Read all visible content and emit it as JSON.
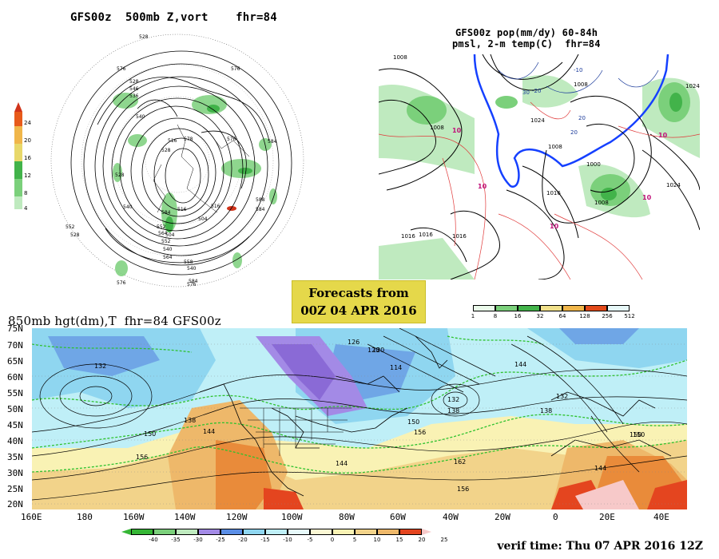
{
  "top_left": {
    "title": "GFS00z  500mb Z,vort    fhr=84",
    "legend": {
      "values": [
        "4",
        "8",
        "12",
        "16",
        "20",
        "24"
      ]
    },
    "contour_labels": [
      "528",
      "576",
      "576",
      "584",
      "528",
      "546",
      "536",
      "540",
      "528",
      "516",
      "528",
      "540",
      "516",
      "584",
      "552",
      "528",
      "552",
      "564",
      "558",
      "540",
      "576",
      "584",
      "588",
      "576",
      "578",
      "516",
      "504",
      "552",
      "540",
      "564",
      "504",
      "584",
      "576"
    ]
  },
  "top_right": {
    "title_line1": "GFS00z pop(mm/dy) 60-84h",
    "title_line2": "pmsl, 2-m temp(C)  fhr=84",
    "legend": {
      "values": [
        "1",
        "8",
        "16",
        "32",
        "64",
        "128",
        "256",
        "512"
      ]
    },
    "contour_labels": [
      "1008",
      "1008",
      "1024",
      "1008",
      "1016",
      "1016",
      "1016",
      "1024",
      "1008",
      "1000",
      "1008",
      "1016",
      "1024"
    ],
    "temp_labels": [
      "10",
      "10",
      "10",
      "10",
      "10",
      "-10",
      "-20",
      "20",
      "30",
      "20"
    ]
  },
  "forecast_box": {
    "line1": "Forecasts from",
    "line2": "00Z 04 APR 2016"
  },
  "bottom": {
    "title": "850mb hgt(dm),T  fhr=84 GFS00z",
    "lat_labels": [
      "75N",
      "70N",
      "65N",
      "60N",
      "55N",
      "50N",
      "45N",
      "40N",
      "35N",
      "30N",
      "25N",
      "20N"
    ],
    "lon_labels": [
      "160E",
      "180",
      "160W",
      "140W",
      "120W",
      "100W",
      "80W",
      "60W",
      "40W",
      "20W",
      "0",
      "20E",
      "40E"
    ],
    "contour_labels": [
      "132",
      "126",
      "120",
      "114",
      "138",
      "132",
      "138",
      "150",
      "144",
      "156",
      "120",
      "150",
      "144",
      "156",
      "162",
      "150",
      "144",
      "144",
      "138",
      "132",
      "150",
      "156"
    ],
    "legend": {
      "values": [
        "-40",
        "-35",
        "-30",
        "-25",
        "-20",
        "-15",
        "-10",
        "-5",
        "0",
        "5",
        "10",
        "15",
        "20",
        "25"
      ]
    }
  },
  "verif": "verif time: Thu 07 APR 2016 12Z"
}
